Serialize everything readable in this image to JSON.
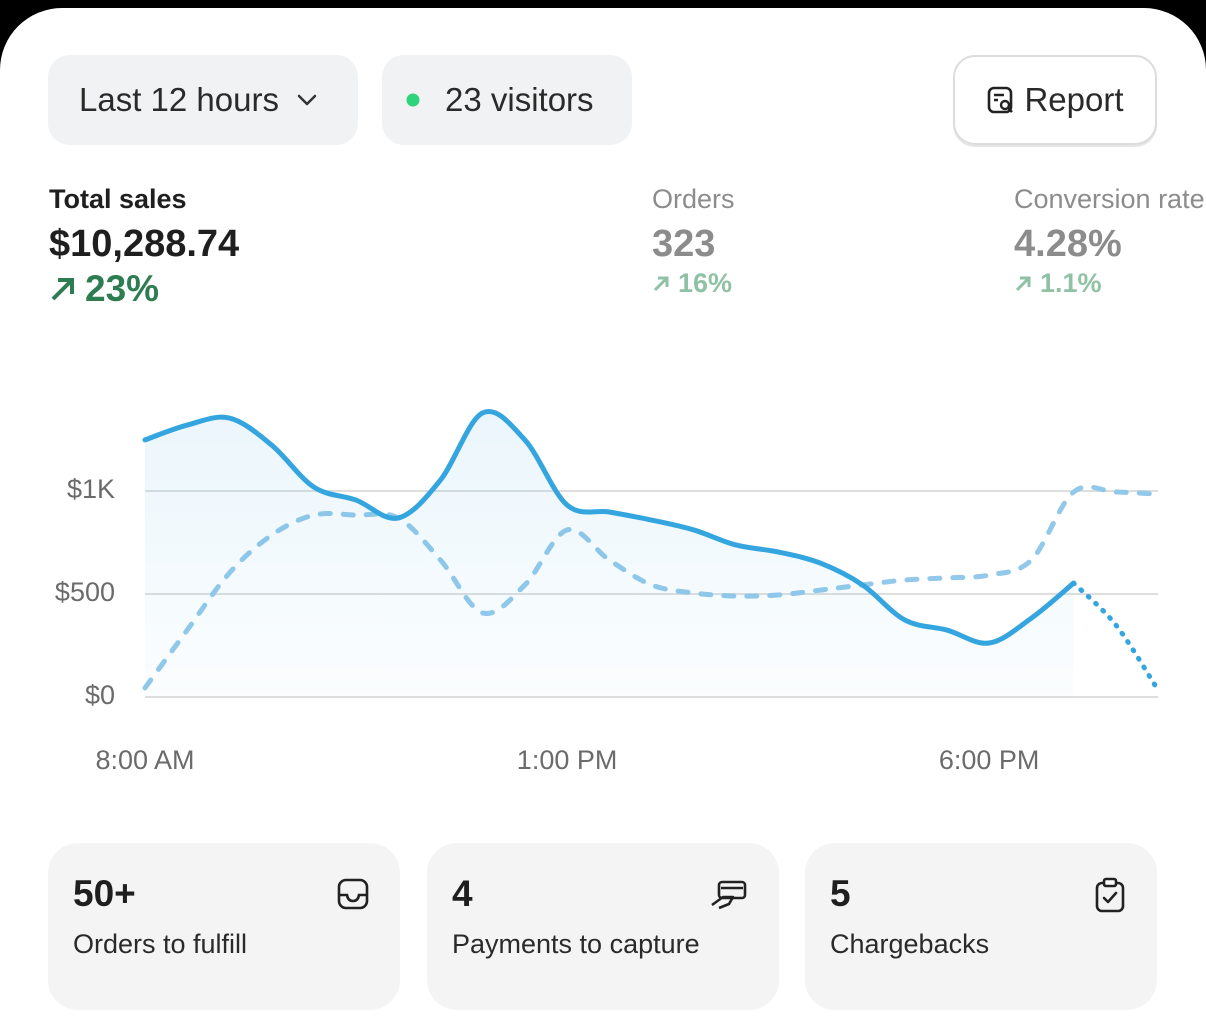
{
  "filters": {
    "time_range": "Last 12 hours",
    "visitors": "23 visitors",
    "report": "Report"
  },
  "metrics": [
    {
      "label": "Total sales",
      "value": "$10,288.74",
      "change": "23%"
    },
    {
      "label": "Orders",
      "value": "323",
      "change": "16%"
    },
    {
      "label": "Conversion rate",
      "value": "4.28%",
      "change": "1.1%"
    }
  ],
  "chart_data": {
    "type": "line",
    "x": [
      8,
      8.5,
      9,
      9.5,
      10,
      10.5,
      11,
      11.5,
      12,
      12.5,
      13,
      13.5,
      14,
      14.5,
      15,
      15.5,
      16,
      16.5,
      17,
      17.5,
      18,
      18.5,
      19,
      19.5,
      20
    ],
    "xlim": [
      8,
      20
    ],
    "xticks": [
      {
        "value": 8,
        "label": "8:00 AM"
      },
      {
        "value": 13,
        "label": "1:00 PM"
      },
      {
        "value": 18,
        "label": "6:00 PM"
      }
    ],
    "ylim": [
      0,
      1500
    ],
    "yticks": [
      {
        "value": 0,
        "label": "$0"
      },
      {
        "value": 500,
        "label": "$500"
      },
      {
        "value": 1000,
        "label": "$1K"
      }
    ],
    "grid": true,
    "series": [
      {
        "color": "#35a5df",
        "style": "solid",
        "fill": true,
        "values": [
          1248,
          1320,
          1354,
          1223,
          1019,
          956,
          869,
          1053,
          1379,
          1248,
          932,
          898,
          859,
          811,
          738,
          704,
          650,
          544,
          374,
          325,
          262,
          383,
          553,
          null,
          null
        ]
      },
      {
        "color": "#35a5df",
        "style": "dotted",
        "fill": false,
        "values": [
          null,
          null,
          null,
          null,
          null,
          null,
          null,
          null,
          null,
          null,
          null,
          null,
          null,
          null,
          null,
          null,
          null,
          null,
          null,
          null,
          null,
          null,
          553,
          350,
          34
        ]
      },
      {
        "color": "#92c9ea",
        "style": "dashed",
        "fill": false,
        "values": [
          44,
          325,
          602,
          786,
          883,
          883,
          869,
          665,
          408,
          544,
          811,
          665,
          544,
          505,
          490,
          495,
          519,
          544,
          568,
          578,
          592,
          665,
          995,
          995,
          985
        ]
      }
    ]
  },
  "tasks": [
    {
      "count": "50+",
      "label": "Orders to fulfill"
    },
    {
      "count": "4",
      "label": "Payments to capture"
    },
    {
      "count": "5",
      "label": "Chargebacks"
    }
  ]
}
